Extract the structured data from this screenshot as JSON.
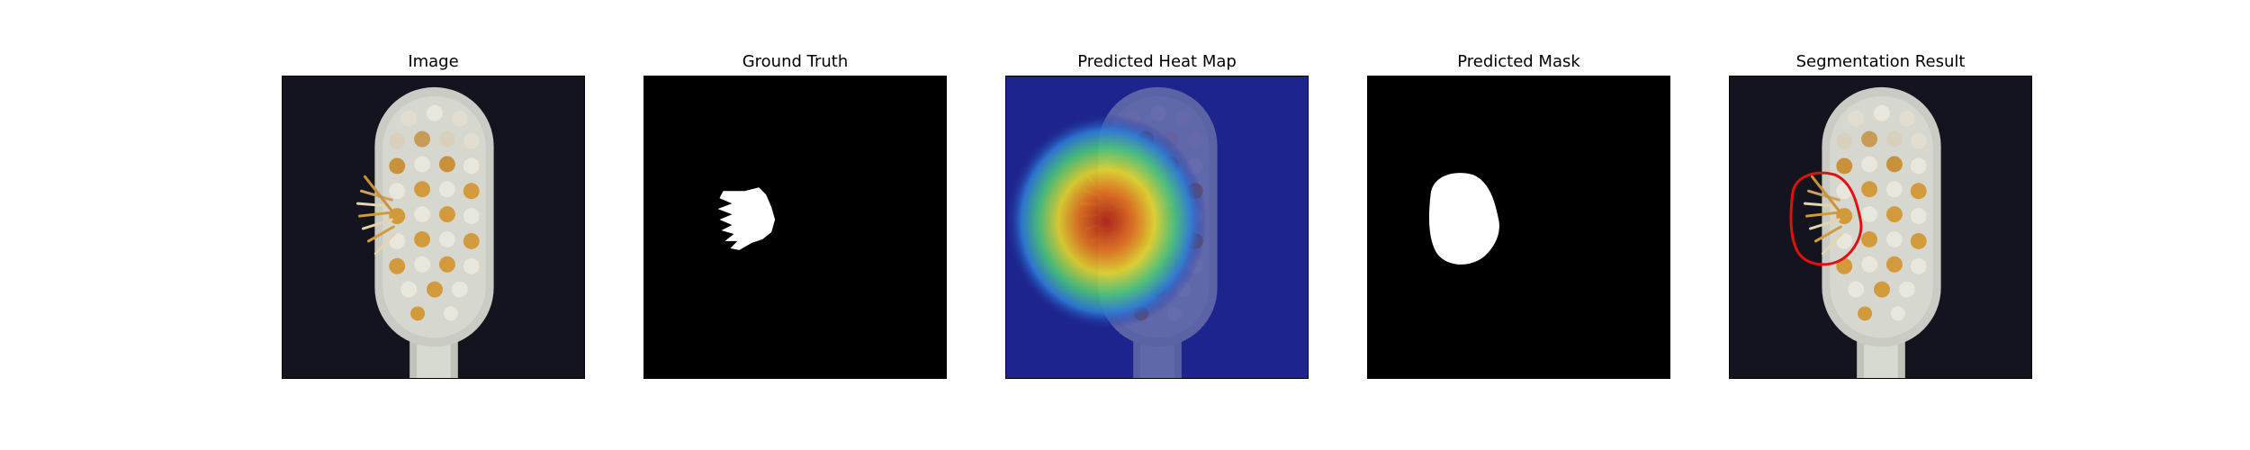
{
  "figure": {
    "panels": [
      {
        "title": "Image"
      },
      {
        "title": "Ground Truth"
      },
      {
        "title": "Predicted Heat Map"
      },
      {
        "title": "Predicted Mask"
      },
      {
        "title": "Segmentation Result"
      }
    ]
  },
  "colors": {
    "background": "#13141d",
    "handle": "#c9cbc4",
    "bristle_gold": "#d39a3c",
    "bristle_white": "#e9e6dc",
    "mask": "#ffffff",
    "mask_background": "#000000",
    "heat_low": "#1f2c9e",
    "heat_high": "#b3200f",
    "contour": "#e01010"
  }
}
